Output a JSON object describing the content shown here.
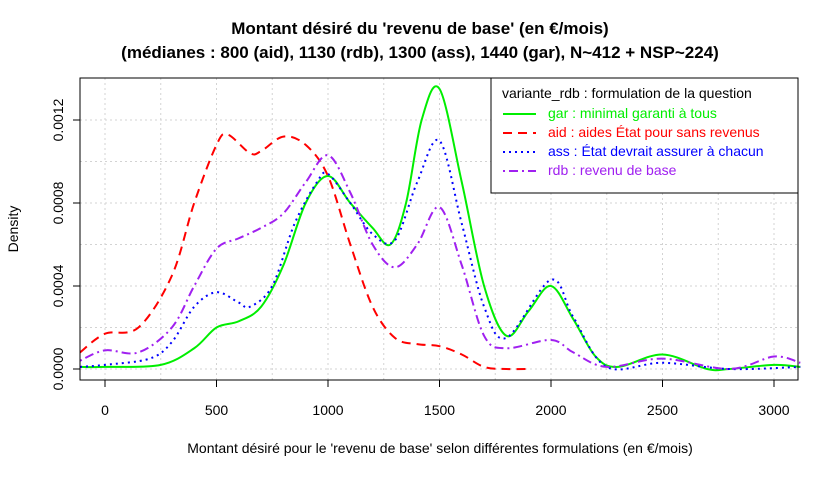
{
  "chart_data": {
    "type": "line",
    "title": "Montant désiré du 'revenu de base' (en €/mois)",
    "subtitle": "(médianes : 800 (aid), 1130 (rdb), 1300 (ass), 1440 (gar), N~412 + NSP~224)",
    "xlabel": "Montant désiré pour le 'revenu de base' selon différentes formulations (en €/mois)",
    "ylabel": "Density",
    "xlim": [
      -112,
      3118
    ],
    "ylim": [
      -5.5e-05,
      0.0014
    ],
    "xticks": [
      0,
      500,
      1000,
      1500,
      2000,
      2500,
      3000
    ],
    "xtick_labels": [
      "0",
      "500",
      "1000",
      "1500",
      "2000",
      "2500",
      "3000"
    ],
    "yticks": [
      0,
      0.0004,
      0.0008,
      0.0012
    ],
    "ytick_labels": [
      "0.0000",
      "0.0004",
      "0.0008",
      "0.0012"
    ],
    "grid": true,
    "legend": {
      "title": "variante_rdb : formulation de la question",
      "placement": "top-right"
    },
    "series": [
      {
        "name": "gar : minimal garanti à tous",
        "color": "#00ee00",
        "dash": "solid",
        "x": [
          -112,
          0,
          250,
          400,
          500,
          600,
          700,
          800,
          900,
          1000,
          1100,
          1200,
          1280,
          1350,
          1420,
          1500,
          1600,
          1700,
          1800,
          1900,
          2000,
          2100,
          2200,
          2300,
          2500,
          2700,
          2800,
          3000,
          3118
        ],
        "y": [
          1e-05,
          1e-05,
          2e-05,
          0.0001,
          0.0002,
          0.00023,
          0.0003,
          0.0005,
          0.0008,
          0.00093,
          0.0008,
          0.00068,
          0.0006,
          0.0008,
          0.0012,
          0.00135,
          0.0009,
          0.0004,
          0.00016,
          0.00028,
          0.0004,
          0.00024,
          6e-05,
          1e-05,
          7e-05,
          0.0,
          0.0,
          2e-05,
          1e-05
        ]
      },
      {
        "name": "aid : aides État pour sans revenus",
        "color": "#ff0000",
        "dash": "dashed",
        "x": [
          -112,
          0,
          150,
          300,
          400,
          500,
          550,
          650,
          700,
          800,
          900,
          1000,
          1100,
          1200,
          1300,
          1400,
          1500,
          1600,
          1700,
          1800,
          1900
        ],
        "y": [
          8e-05,
          0.00017,
          0.0002,
          0.00045,
          0.0008,
          0.00108,
          0.00113,
          0.00104,
          0.00105,
          0.00112,
          0.00108,
          0.00093,
          0.0006,
          0.0003,
          0.00015,
          0.00012,
          0.00011,
          7e-05,
          1e-05,
          0.0,
          0.0
        ]
      },
      {
        "name": "ass : État devrait assurer à chacun",
        "color": "#0000ff",
        "dash": "dotted",
        "x": [
          -112,
          0,
          200,
          300,
          400,
          500,
          600,
          650,
          750,
          850,
          950,
          1000,
          1100,
          1200,
          1300,
          1400,
          1500,
          1600,
          1700,
          1800,
          2000,
          2100,
          2250,
          2500,
          2800,
          3118
        ],
        "y": [
          1e-05,
          2e-05,
          5e-05,
          0.00013,
          0.0003,
          0.00037,
          0.00032,
          0.0003,
          0.0004,
          0.0007,
          0.0009,
          0.00094,
          0.0008,
          0.00065,
          0.00062,
          0.0009,
          0.0011,
          0.0007,
          0.0003,
          0.00015,
          0.00043,
          0.00025,
          1e-05,
          3e-05,
          0.0,
          1e-05
        ]
      },
      {
        "name": "rdb : revenu de base",
        "color": "#a020f0",
        "dash": "dotdash",
        "x": [
          -112,
          0,
          150,
          300,
          400,
          500,
          600,
          700,
          800,
          900,
          1000,
          1100,
          1200,
          1300,
          1400,
          1500,
          1600,
          1700,
          1800,
          2000,
          2100,
          2250,
          2500,
          2800,
          3000,
          3118
        ],
        "y": [
          4e-05,
          9e-05,
          8e-05,
          0.0002,
          0.0004,
          0.00058,
          0.00063,
          0.00068,
          0.00075,
          0.0009,
          0.00103,
          0.00085,
          0.0006,
          0.00049,
          0.0006,
          0.00078,
          0.0005,
          0.00016,
          0.0001,
          0.00014,
          8e-05,
          1e-05,
          5e-05,
          0.0,
          6e-05,
          3e-05
        ]
      }
    ]
  }
}
